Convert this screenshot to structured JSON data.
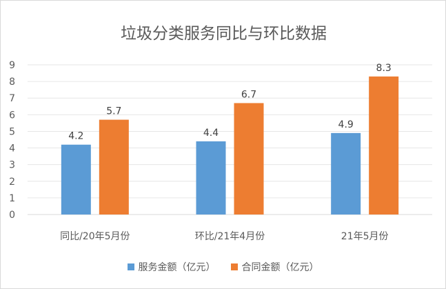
{
  "chart_data": {
    "type": "bar",
    "title": "垃圾分类服务同比与环比数据",
    "categories": [
      "同比/20年5月份",
      "环比/21年4月份",
      "21年5月份"
    ],
    "series": [
      {
        "name": "服务金额（亿元）",
        "values": [
          4.2,
          4.4,
          4.9
        ],
        "color": "#5b9bd5"
      },
      {
        "name": "合同金额（亿元）",
        "values": [
          5.7,
          6.7,
          8.3
        ],
        "color": "#ed7d31"
      }
    ],
    "ylim": [
      0,
      9
    ],
    "yticks": [
      0,
      1,
      2,
      3,
      4,
      5,
      6,
      7,
      8,
      9
    ],
    "grid": true,
    "legend": "bottom"
  }
}
